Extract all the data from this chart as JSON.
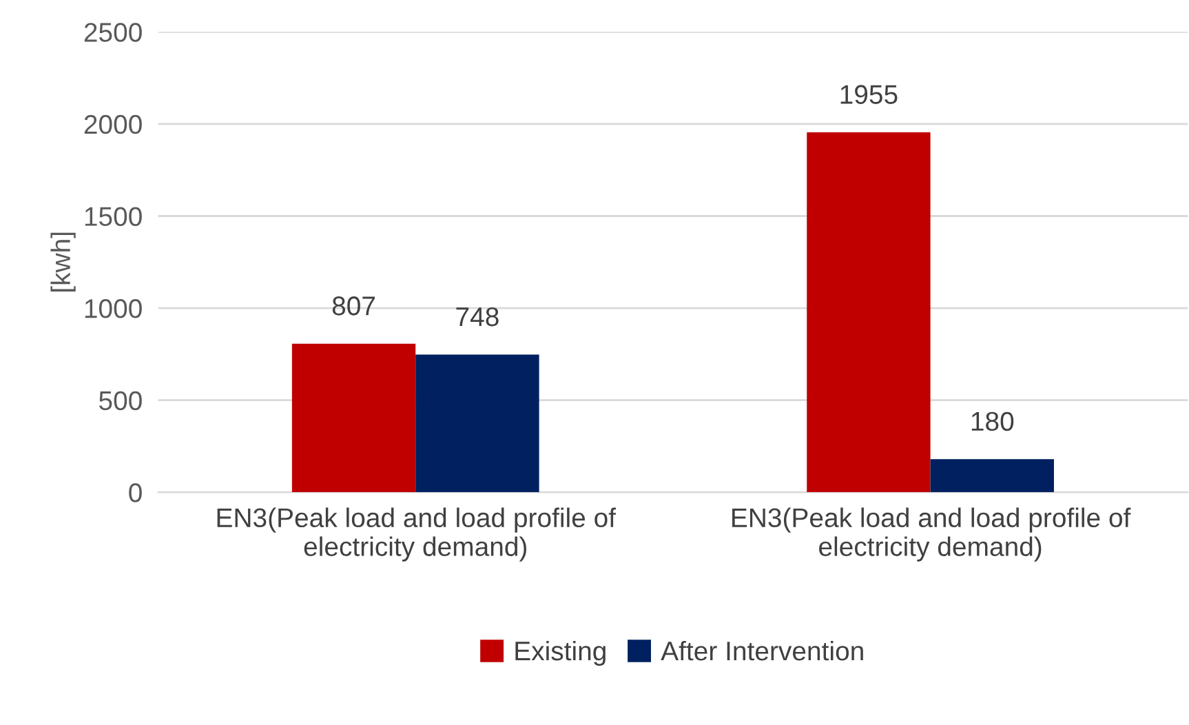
{
  "chart_data": {
    "type": "bar",
    "ylabel": "[kwh]",
    "categories": [
      "EN3(Peak load and load profile of electricity demand)",
      "EN3(Peak load and load profile of electricity demand)"
    ],
    "series": [
      {
        "name": "Existing",
        "color": "#c00000",
        "values": [
          807,
          1955
        ]
      },
      {
        "name": "After Intervention",
        "color": "#002060",
        "values": [
          748,
          180
        ]
      }
    ],
    "ylim": [
      0,
      2500
    ],
    "yticks": [
      0,
      500,
      1000,
      1500,
      2000,
      2500
    ],
    "grid": "y",
    "legend": "bottom",
    "data_labels": true
  }
}
